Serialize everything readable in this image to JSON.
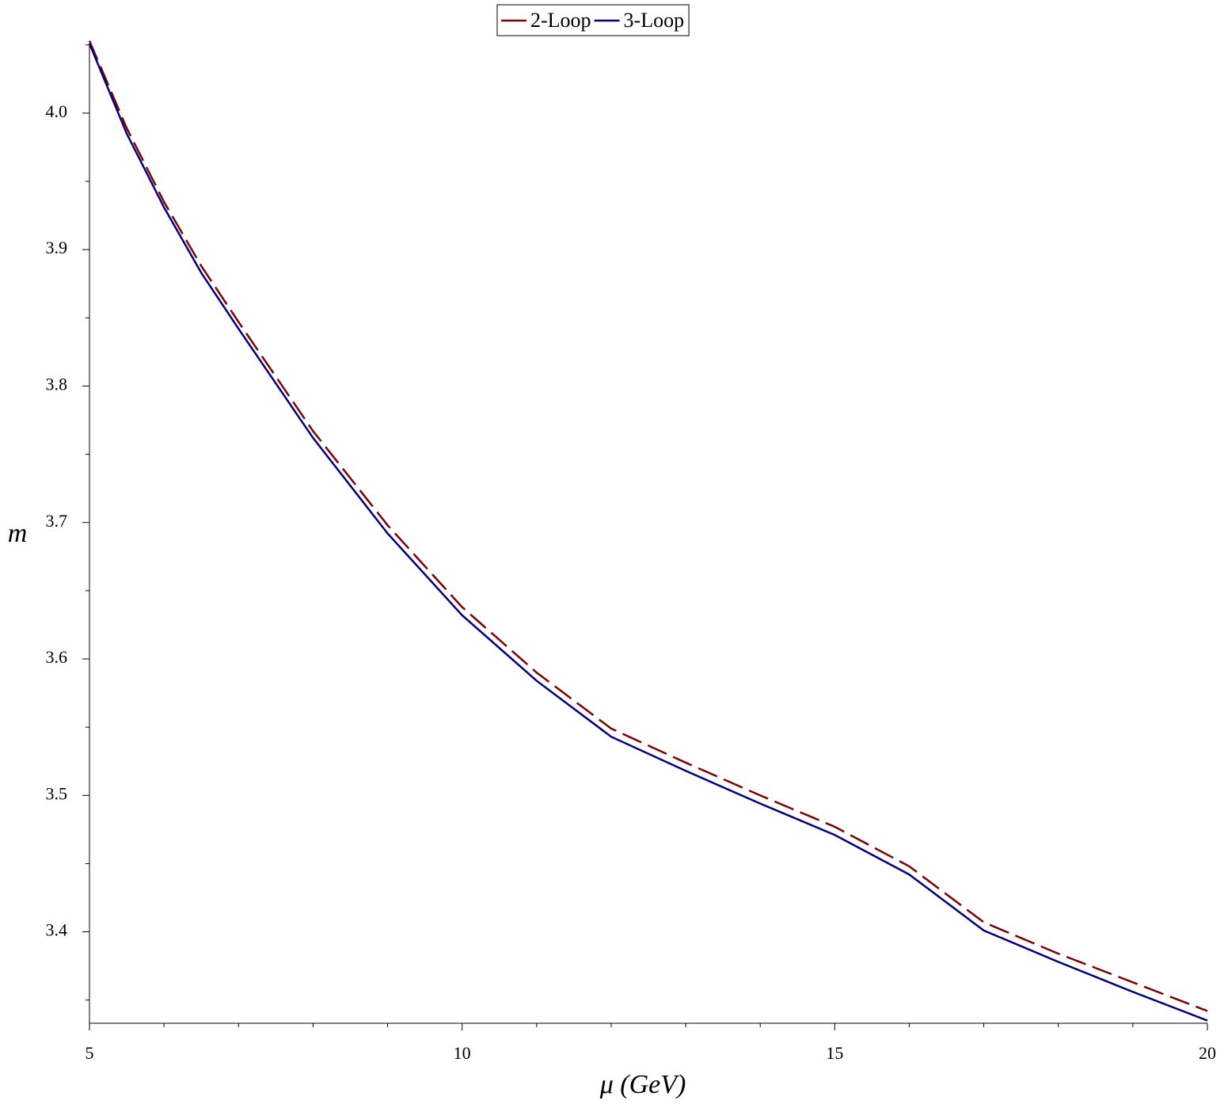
{
  "chart_data": {
    "type": "line",
    "xlabel": "μ (GeV)",
    "ylabel": "m",
    "x": [
      5,
      5.5,
      6,
      6.5,
      7,
      8,
      9,
      10,
      11,
      12,
      13,
      14,
      15,
      16,
      17,
      18,
      19,
      20
    ],
    "series": [
      {
        "name": "2-Loop",
        "color": "#800000",
        "dash": true,
        "values": [
          4.053,
          3.989,
          3.935,
          3.888,
          3.847,
          3.767,
          3.698,
          3.638,
          3.59,
          3.549,
          3.524,
          3.5,
          3.477,
          3.448,
          3.407,
          3.384,
          3.363,
          3.342
        ]
      },
      {
        "name": "3-Loop",
        "color": "#000080",
        "dash": false,
        "values": [
          4.051,
          3.985,
          3.931,
          3.883,
          3.842,
          3.762,
          3.692,
          3.632,
          3.584,
          3.543,
          3.518,
          3.494,
          3.471,
          3.442,
          3.401,
          3.378,
          3.356,
          3.335
        ]
      }
    ],
    "xlim": [
      5,
      20
    ],
    "ylim": [
      3.333,
      4.051
    ],
    "xticks": [
      5,
      10,
      15,
      20
    ],
    "xminorticks": [
      6,
      7,
      8,
      9,
      11,
      12,
      13,
      14,
      16,
      17,
      18,
      19
    ],
    "yticks": [
      3.4,
      3.5,
      3.6,
      3.7,
      3.8,
      3.9,
      {
        "value": 4,
        "label": "4.0"
      }
    ],
    "yminorticks": [
      3.35,
      3.45,
      3.55,
      3.65,
      3.75,
      3.85,
      3.95,
      4.05
    ],
    "legend": "top"
  }
}
